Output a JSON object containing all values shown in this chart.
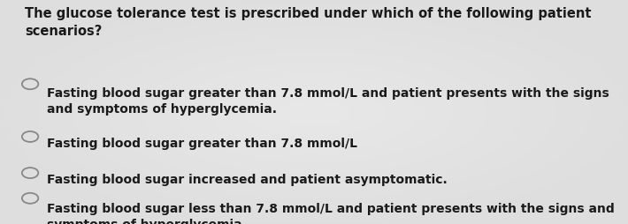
{
  "background_color": "#d0d0d0",
  "background_center_color": "#e8e8e8",
  "question": "The glucose tolerance test is prescribed under which of the following patient\nscenarios?",
  "options": [
    "Fasting blood sugar greater than 7.8 mmol/L and patient presents with the signs\nand symptoms of hyperglycemia.",
    "Fasting blood sugar greater than 7.8 mmol/L",
    "Fasting blood sugar increased and patient asymptomatic.",
    "Fasting blood sugar less than 7.8 mmol/L and patient presents with the signs and\nsymptoms of hyperglycemia"
  ],
  "question_fontsize": 10.5,
  "option_fontsize": 10.0,
  "text_color": "#1a1a1a",
  "circle_color": "#888888",
  "fig_width": 7.1,
  "fig_height": 2.54
}
